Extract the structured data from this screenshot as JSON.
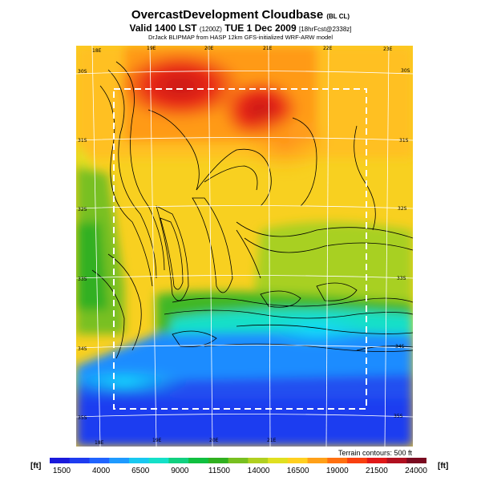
{
  "header": {
    "title": "OvercastDevelopment Cloudbase",
    "title_suffix": "(BL CL)",
    "valid_line": "Valid 1400 LST",
    "valid_code": "(1200Z)",
    "valid_date": "TUE 1 Dec 2009",
    "forecast_info": "[18hrFcst@2338z]",
    "credit": "DrJack BLIPMAP from HASP 12km GFS-initialized WRF-ARW model"
  },
  "map": {
    "lon_labels_top": [
      "18E",
      "19E",
      "20E",
      "21E",
      "22E",
      "23E"
    ],
    "lon_labels_bottom": [
      "18E",
      "19E",
      "20E",
      "21E"
    ],
    "lat_labels_left": [
      "30S",
      "31S",
      "32S",
      "33S",
      "34S",
      "35S"
    ],
    "lat_labels_right": [
      "30S",
      "31S",
      "32S",
      "33S",
      "34S",
      "35S"
    ],
    "terrain_note": "Terrain contours: 500 ft"
  },
  "colorbar": {
    "unit_left": "[ft]",
    "unit_right": "[ft]",
    "tick_labels": [
      "1500",
      "4000",
      "6500",
      "9000",
      "11500",
      "14000",
      "16500",
      "19000",
      "21500",
      "24000"
    ],
    "colors": [
      "#1a1adc",
      "#1e3cf0",
      "#2064ff",
      "#1e9aff",
      "#18c8f0",
      "#14e0c8",
      "#10d080",
      "#10c040",
      "#30b020",
      "#78c020",
      "#b0d020",
      "#e0e020",
      "#ffd020",
      "#ffa018",
      "#ff7010",
      "#f84010",
      "#e01818",
      "#b01020",
      "#7a0a20"
    ]
  }
}
